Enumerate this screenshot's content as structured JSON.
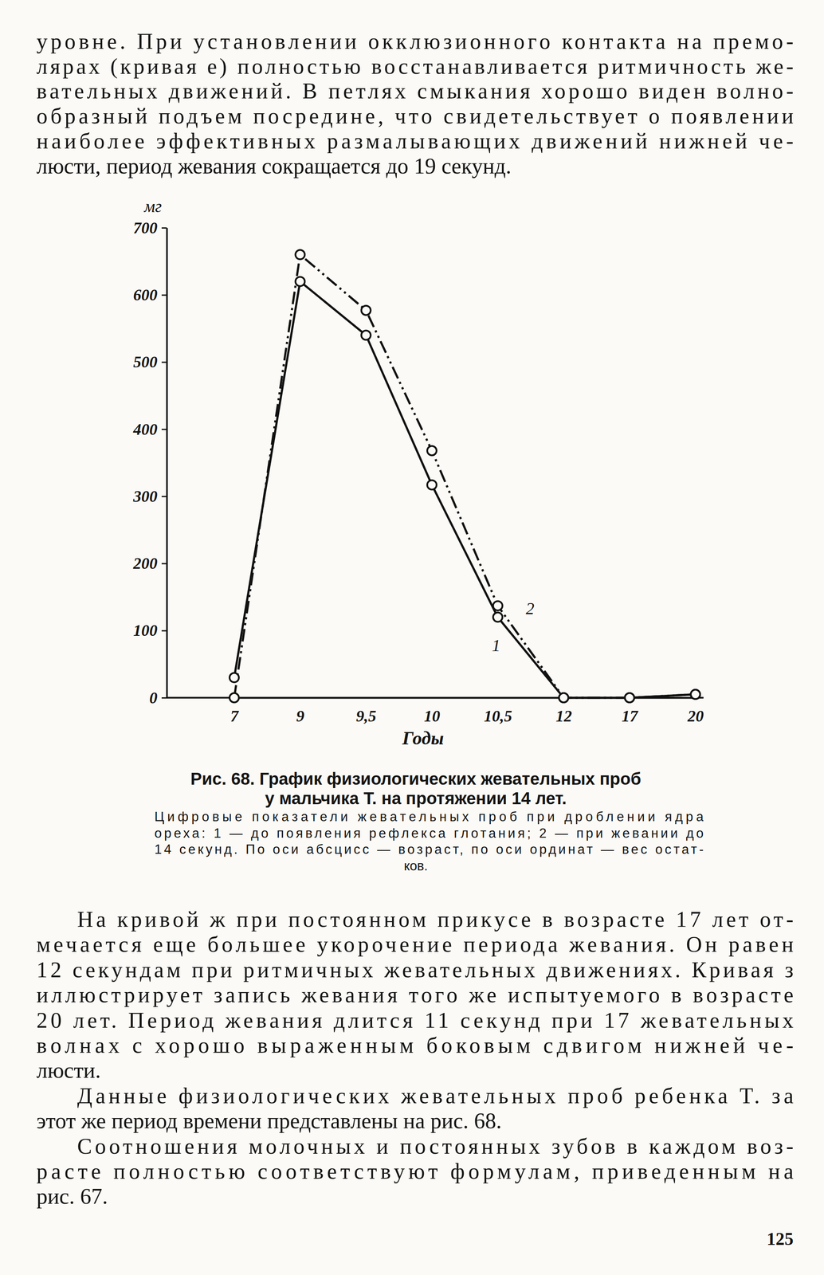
{
  "text_top": {
    "lines": [
      "уровне. При установлении окклюзионного контакта на премо-",
      "лярах (кривая е) полностью восстанавливается ритмичность же-",
      "вательных движений. В петлях смыкания хорошо виден волно-",
      "образный подъем посредине, что свидетельствует о появлении",
      "наиболее эффективных размалывающих движений нижней че-",
      "люсти, период жевания сокращается до 19 секунд."
    ]
  },
  "chart_data": {
    "type": "line",
    "y_label": "мг",
    "x_label": "Годы",
    "categories": [
      "7",
      "9",
      "9,5",
      "10",
      "10,5",
      "12",
      "17",
      "20"
    ],
    "series": [
      {
        "name": "1",
        "color": "#111111",
        "marker": "circle",
        "line_style": "solid",
        "values": [
          30,
          620,
          540,
          317,
          120,
          0,
          0,
          5
        ]
      },
      {
        "name": "2",
        "color": "#111111",
        "marker": "circle",
        "line_style": "dashdot",
        "values": [
          0,
          660,
          577,
          368,
          137,
          0,
          0,
          5
        ]
      }
    ],
    "ylim": [
      0,
      700
    ],
    "yticks": [
      0,
      100,
      200,
      300,
      400,
      500,
      600,
      700
    ]
  },
  "caption": {
    "title_lines": [
      "Рис. 68. График физиологических жевательных проб",
      "у мальчика Т. на протяжении 14 лет."
    ],
    "note_lines": [
      "Цифровые показатели жевательных проб при дроблении ядра",
      "ореха: 1 — до появления рефлекса глотания; 2 — при жевании до",
      "14 секунд. По оси абсцисс — возраст, по оси ординат — вес остат-",
      "ков."
    ]
  },
  "text_bottom": {
    "paragraphs": [
      [
        "На кривой ж при постоянном прикусе в возрасте 17 лет от-",
        "мечается еще большее укорочение периода жевания. Он равен",
        "12 секундам при ритмичных жевательных движениях. Кривая з",
        "иллюстрирует запись жевания того же испытуемого в возрасте",
        "20 лет. Период жевания длится 11 секунд при 17 жевательных",
        "волнах с хорошо выраженным боковым сдвигом нижней че-",
        "люсти."
      ],
      [
        "Данные физиологических жевательных проб ребенка Т. за",
        "этот же период времени представлены на рис. 68."
      ],
      [
        "Соотношения молочных и постоянных зубов в каждом воз-",
        "расте полностью соответствуют формулам, приведенным на",
        "рис. 67."
      ]
    ]
  },
  "page_number": "125"
}
